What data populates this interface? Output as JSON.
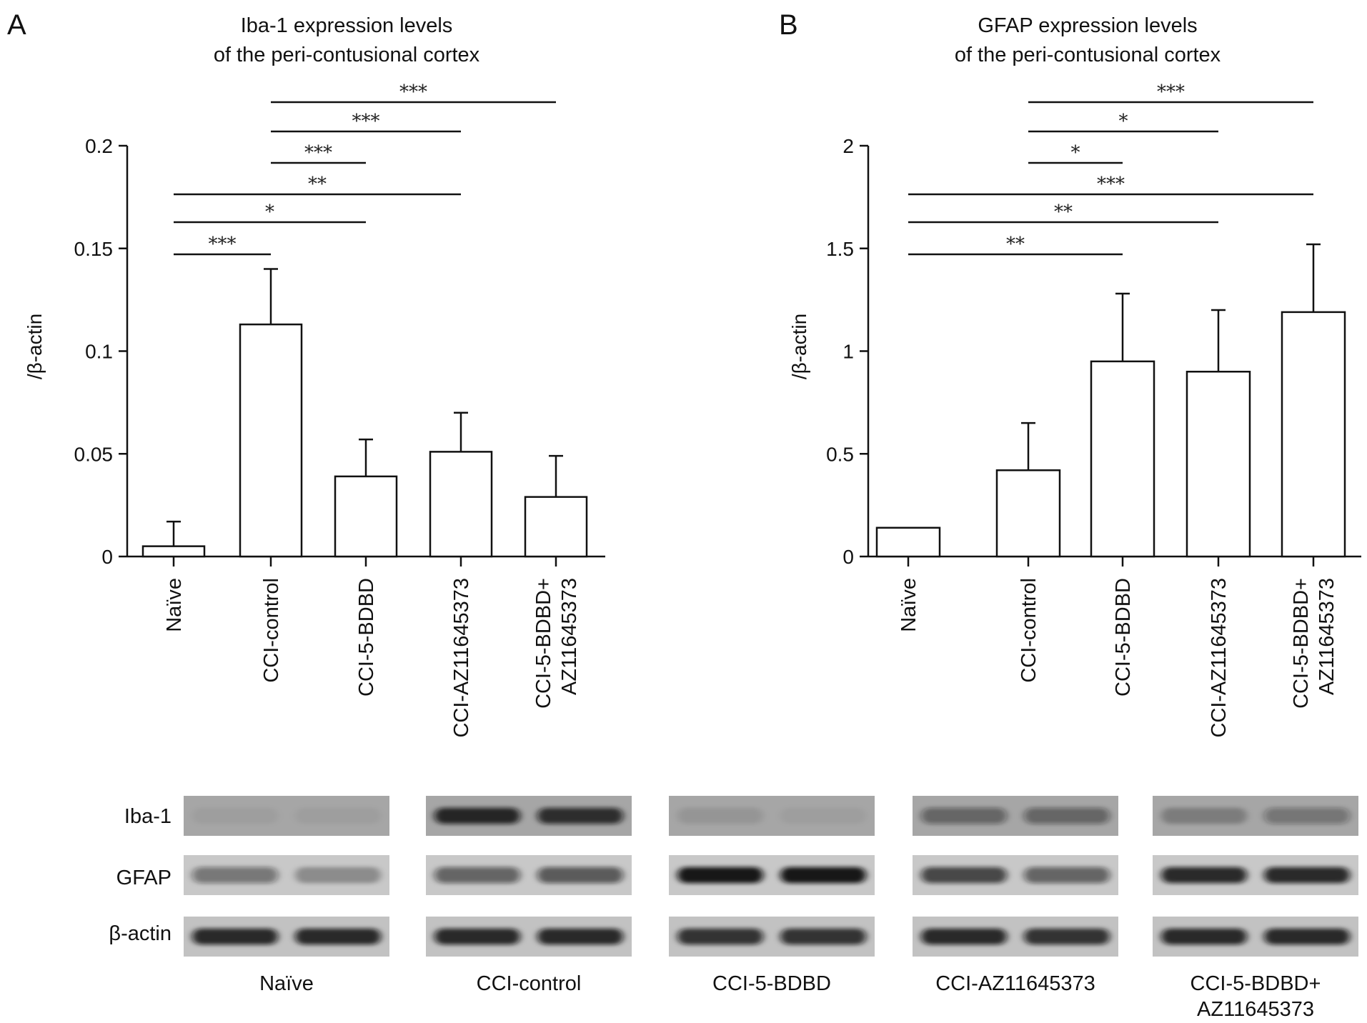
{
  "chart_data": [
    {
      "type": "bar",
      "panel": "A",
      "title": [
        "Iba-1 expression levels",
        "of the peri-contusional cortex"
      ],
      "ylabel": "/β-actin",
      "xlabel": "",
      "categories": [
        "Naïve",
        "CCI-control",
        "CCI-5-BDBD",
        "CCI-AZ11645373",
        "CCI-5-BDBD+\nAZ11645373"
      ],
      "values": [
        0.005,
        0.113,
        0.039,
        0.051,
        0.029
      ],
      "errors": [
        0.012,
        0.027,
        0.018,
        0.019,
        0.02
      ],
      "ylim": [
        0,
        0.2
      ],
      "yticks": [
        0,
        0.05,
        0.1,
        0.15,
        0.2
      ],
      "ytick_labels": [
        "0",
        "0.05",
        "0.1",
        "0.15",
        "0.2"
      ],
      "grid": false,
      "significance": [
        {
          "from": 1,
          "to": 4,
          "label": "***"
        },
        {
          "from": 1,
          "to": 3,
          "label": "***"
        },
        {
          "from": 1,
          "to": 2,
          "label": "***"
        },
        {
          "from": 0,
          "to": 3,
          "label": "**"
        },
        {
          "from": 0,
          "to": 2,
          "label": "*"
        },
        {
          "from": 0,
          "to": 1,
          "label": "***"
        }
      ]
    },
    {
      "type": "bar",
      "panel": "B",
      "title": [
        "GFAP expression levels",
        "of the peri-contusional cortex"
      ],
      "ylabel": "/β-actin",
      "xlabel": "",
      "categories": [
        "Naïve",
        "CCI-control",
        "CCI-5-BDBD",
        "CCI-AZ11645373",
        "CCI-5-BDBD+\nAZ11645373"
      ],
      "values": [
        0.14,
        0.42,
        0.95,
        0.9,
        1.19
      ],
      "errors": [
        0,
        0.23,
        0.33,
        0.3,
        0.33
      ],
      "ylim": [
        0,
        2
      ],
      "yticks": [
        0,
        0.5,
        1,
        1.5,
        2
      ],
      "ytick_labels": [
        "0",
        "0.5",
        "1",
        "1.5",
        "2"
      ],
      "grid": false,
      "significance": [
        {
          "from": 1,
          "to": 4,
          "label": "***"
        },
        {
          "from": 1,
          "to": 3,
          "label": "*"
        },
        {
          "from": 1,
          "to": 2,
          "label": "*"
        },
        {
          "from": 0,
          "to": 4,
          "label": "***"
        },
        {
          "from": 0,
          "to": 3,
          "label": "**"
        },
        {
          "from": 0,
          "to": 2,
          "label": "**"
        }
      ]
    }
  ],
  "blot": {
    "row_labels": [
      "Iba-1",
      "GFAP",
      "β-actin"
    ],
    "group_labels": [
      "Naïve",
      "CCI-control",
      "CCI-5-BDBD",
      "CCI-AZ11645373",
      "CCI-5-BDBD+\nAZ11645373"
    ],
    "band_intensity": [
      [
        [
          0.05,
          0.05
        ],
        [
          0.85,
          0.8
        ],
        [
          0.1,
          0.05
        ],
        [
          0.45,
          0.45
        ],
        [
          0.25,
          0.35
        ]
      ],
      [
        [
          0.45,
          0.3
        ],
        [
          0.55,
          0.6
        ],
        [
          0.95,
          0.95
        ],
        [
          0.7,
          0.55
        ],
        [
          0.85,
          0.85
        ]
      ],
      [
        [
          0.85,
          0.85
        ],
        [
          0.85,
          0.85
        ],
        [
          0.8,
          0.8
        ],
        [
          0.85,
          0.8
        ],
        [
          0.85,
          0.85
        ]
      ]
    ]
  }
}
